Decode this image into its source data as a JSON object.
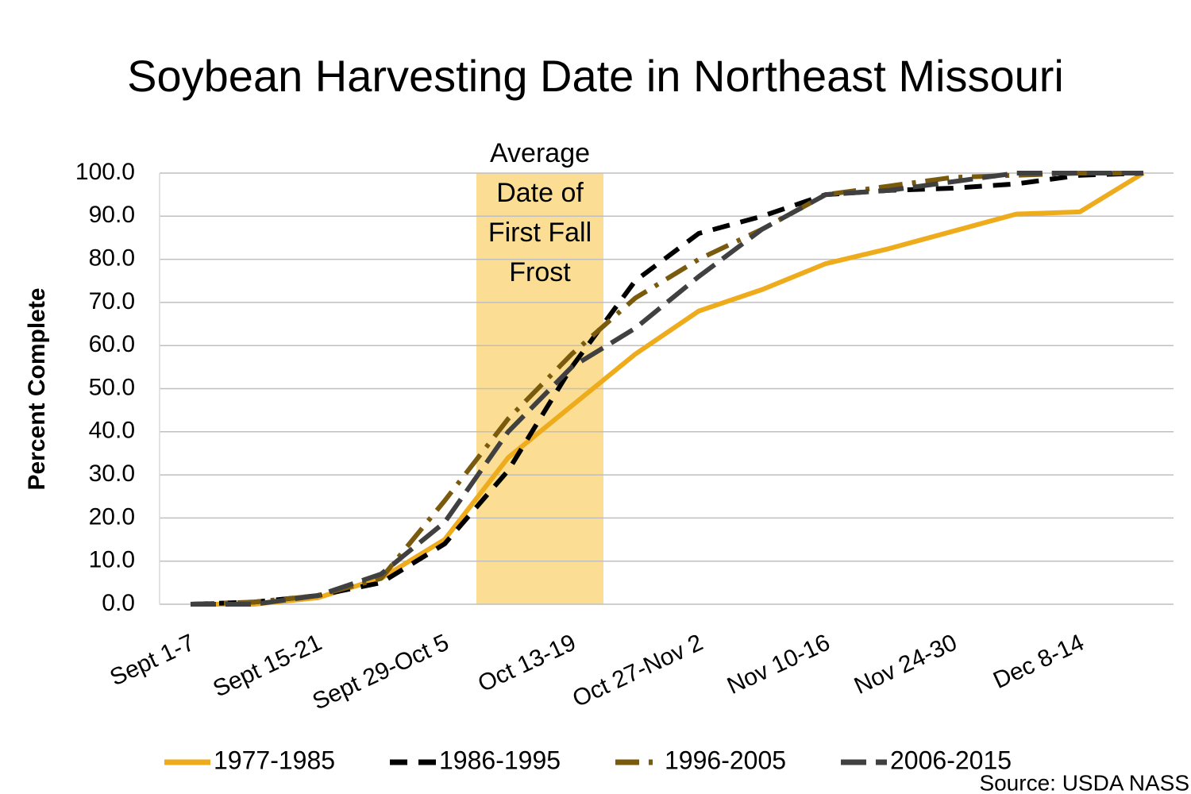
{
  "chart_data": {
    "type": "line",
    "title": "Soybean Harvesting Date in Northeast Missouri",
    "y_label": "Percent Complete",
    "source": "Source: USDA NASS",
    "annotation": [
      "Average",
      "Date of",
      "First Fall",
      "Frost"
    ],
    "categories": [
      "Sept 1-7",
      null,
      "Sept 15-21",
      null,
      "Sept 29-Oct 5",
      null,
      "Oct 13-19",
      null,
      "Oct 27-Nov 2",
      null,
      "Nov 10-16",
      null,
      "Nov 24-30",
      null,
      "Dec 8-14",
      null
    ],
    "series": [
      {
        "name": "1977-1985",
        "color": "#EEAC1C",
        "dash": "solid",
        "values": [
          0,
          0,
          1.5,
          6,
          15,
          34,
          46,
          58,
          68,
          73,
          79,
          82.5,
          86.5,
          90.5,
          91,
          100
        ]
      },
      {
        "name": "1986-1995",
        "color": "#000000",
        "dash": "dash",
        "values": [
          0,
          0.5,
          2,
          5,
          14,
          31,
          55,
          75,
          86,
          90,
          95,
          96,
          96.5,
          97.5,
          99.5,
          100
        ]
      },
      {
        "name": "1996-2005",
        "color": "#7A5B0E",
        "dash": "dashdot",
        "values": [
          0,
          0.5,
          2,
          6,
          24,
          43,
          58,
          71,
          80,
          87,
          95,
          97,
          99,
          99.5,
          100,
          100
        ]
      },
      {
        "name": "2006-2015",
        "color": "#404040",
        "dash": "longdash",
        "values": [
          0,
          0,
          2,
          7,
          19,
          40,
          55,
          64,
          76,
          87,
          95,
          96,
          98,
          100,
          100,
          100
        ]
      }
    ],
    "ylim": [
      0,
      100
    ],
    "yticks": [
      {
        "value": 0,
        "label": "0.0"
      },
      {
        "value": 10,
        "label": "10.0"
      },
      {
        "value": 20,
        "label": "20.0"
      },
      {
        "value": 30,
        "label": "30.0"
      },
      {
        "value": 40,
        "label": "40.0"
      },
      {
        "value": 50,
        "label": "50.0"
      },
      {
        "value": 60,
        "label": "60.0"
      },
      {
        "value": 70,
        "label": "70.0"
      },
      {
        "value": 80,
        "label": "80.0"
      },
      {
        "value": 90,
        "label": "90.0"
      },
      {
        "value": 100,
        "label": "100.0"
      }
    ],
    "grid": true,
    "legend": "bottom"
  }
}
